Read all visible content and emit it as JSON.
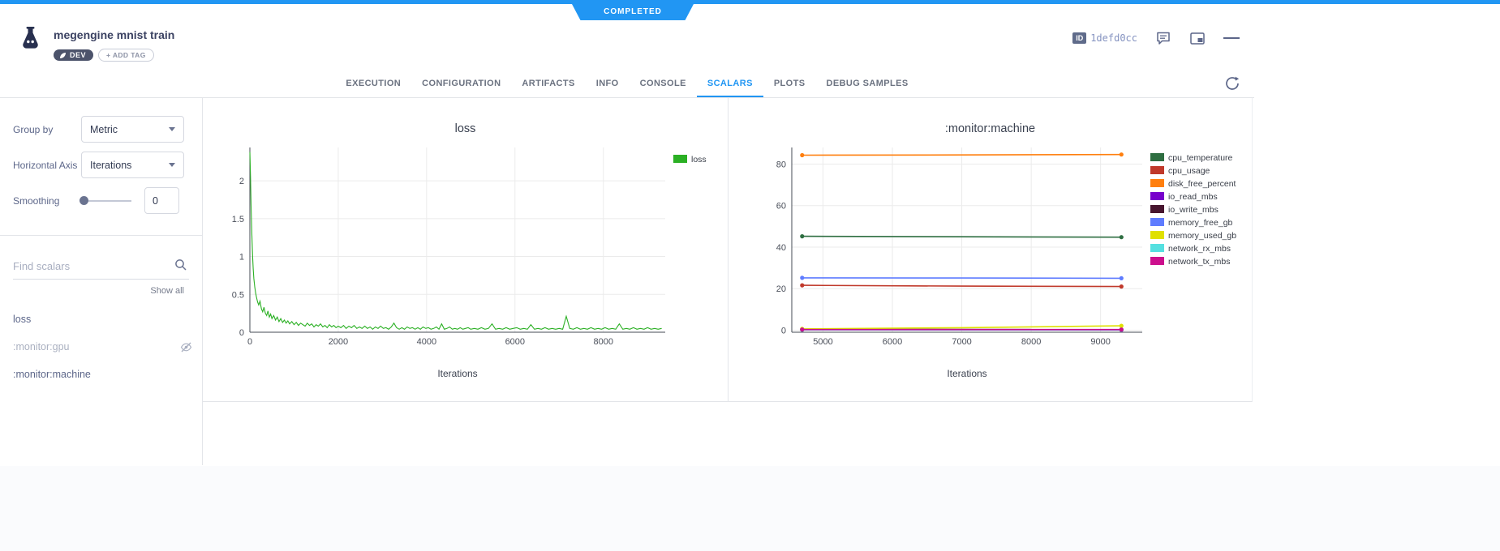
{
  "status_ribbon": {
    "label": "COMPLETED",
    "color": "#2196f3"
  },
  "header": {
    "title": "megengine mnist train",
    "tags": [
      {
        "label": "DEV"
      }
    ],
    "add_tag_label": "+ ADD TAG",
    "id_badge": {
      "label": "ID",
      "value": "1defd0cc"
    }
  },
  "tabs": {
    "items": [
      {
        "label": "EXECUTION",
        "active": false
      },
      {
        "label": "CONFIGURATION",
        "active": false
      },
      {
        "label": "ARTIFACTS",
        "active": false
      },
      {
        "label": "INFO",
        "active": false
      },
      {
        "label": "CONSOLE",
        "active": false
      },
      {
        "label": "SCALARS",
        "active": true
      },
      {
        "label": "PLOTS",
        "active": false
      },
      {
        "label": "DEBUG SAMPLES",
        "active": false
      }
    ]
  },
  "sidebar": {
    "group_by": {
      "label": "Group by",
      "value": "Metric"
    },
    "horizontal_axis": {
      "label": "Horizontal Axis",
      "value": "Iterations"
    },
    "smoothing": {
      "label": "Smoothing",
      "value": "0"
    },
    "find_scalars_placeholder": "Find scalars",
    "show_all_label": "Show all",
    "metrics": [
      {
        "label": "loss",
        "state": "visible"
      },
      {
        "label": ":monitor:gpu",
        "state": "hidden"
      },
      {
        "label": ":monitor:machine",
        "state": "visible"
      }
    ]
  },
  "chart_data": [
    {
      "type": "line",
      "title": "loss",
      "xlabel": "Iterations",
      "ylabel": "",
      "xlim": [
        0,
        9400
      ],
      "ylim": [
        0,
        2.44
      ],
      "xticks": [
        0,
        2000,
        4000,
        6000,
        8000
      ],
      "yticks": [
        0,
        0.5,
        1,
        1.5,
        2
      ],
      "grid": true,
      "legend_position": "right-top",
      "legend_y": 18,
      "markers": false,
      "line_width": 1.1,
      "series": [
        {
          "name": "loss",
          "color": "#2bb024",
          "points": [
            [
              0,
              2.38
            ],
            [
              15,
              2.05
            ],
            [
              30,
              1.62
            ],
            [
              45,
              1.28
            ],
            [
              60,
              1.02
            ],
            [
              75,
              0.84
            ],
            [
              90,
              0.71
            ],
            [
              110,
              0.6
            ],
            [
              130,
              0.52
            ],
            [
              150,
              0.46
            ],
            [
              175,
              0.4
            ],
            [
              200,
              0.36
            ],
            [
              230,
              0.41
            ],
            [
              260,
              0.31
            ],
            [
              290,
              0.27
            ],
            [
              320,
              0.33
            ],
            [
              350,
              0.25
            ],
            [
              380,
              0.22
            ],
            [
              410,
              0.28
            ],
            [
              440,
              0.2
            ],
            [
              470,
              0.24
            ],
            [
              500,
              0.18
            ],
            [
              540,
              0.22
            ],
            [
              580,
              0.16
            ],
            [
              620,
              0.2
            ],
            [
              660,
              0.14
            ],
            [
              700,
              0.18
            ],
            [
              740,
              0.13
            ],
            [
              780,
              0.16
            ],
            [
              820,
              0.12
            ],
            [
              860,
              0.15
            ],
            [
              900,
              0.11
            ],
            [
              950,
              0.14
            ],
            [
              1000,
              0.1
            ],
            [
              1050,
              0.13
            ],
            [
              1100,
              0.09
            ],
            [
              1150,
              0.12
            ],
            [
              1200,
              0.1
            ],
            [
              1250,
              0.08
            ],
            [
              1300,
              0.12
            ],
            [
              1350,
              0.09
            ],
            [
              1400,
              0.11
            ],
            [
              1450,
              0.07
            ],
            [
              1500,
              0.1
            ],
            [
              1550,
              0.08
            ],
            [
              1600,
              0.11
            ],
            [
              1650,
              0.07
            ],
            [
              1700,
              0.09
            ],
            [
              1750,
              0.06
            ],
            [
              1800,
              0.1
            ],
            [
              1850,
              0.07
            ],
            [
              1900,
              0.09
            ],
            [
              1950,
              0.06
            ],
            [
              2000,
              0.08
            ],
            [
              2060,
              0.06
            ],
            [
              2120,
              0.09
            ],
            [
              2180,
              0.05
            ],
            [
              2240,
              0.08
            ],
            [
              2300,
              0.06
            ],
            [
              2360,
              0.09
            ],
            [
              2420,
              0.05
            ],
            [
              2480,
              0.07
            ],
            [
              2540,
              0.05
            ],
            [
              2600,
              0.08
            ],
            [
              2660,
              0.05
            ],
            [
              2720,
              0.07
            ],
            [
              2780,
              0.04
            ],
            [
              2840,
              0.07
            ],
            [
              2900,
              0.05
            ],
            [
              2960,
              0.08
            ],
            [
              3020,
              0.05
            ],
            [
              3080,
              0.06
            ],
            [
              3140,
              0.04
            ],
            [
              3200,
              0.07
            ],
            [
              3260,
              0.12
            ],
            [
              3320,
              0.06
            ],
            [
              3380,
              0.04
            ],
            [
              3440,
              0.06
            ],
            [
              3500,
              0.04
            ],
            [
              3560,
              0.07
            ],
            [
              3620,
              0.05
            ],
            [
              3680,
              0.06
            ],
            [
              3740,
              0.04
            ],
            [
              3800,
              0.06
            ],
            [
              3860,
              0.04
            ],
            [
              3920,
              0.07
            ],
            [
              3980,
              0.05
            ],
            [
              4040,
              0.06
            ],
            [
              4100,
              0.04
            ],
            [
              4160,
              0.05
            ],
            [
              4220,
              0.07
            ],
            [
              4280,
              0.04
            ],
            [
              4340,
              0.11
            ],
            [
              4400,
              0.04
            ],
            [
              4460,
              0.05
            ],
            [
              4520,
              0.07
            ],
            [
              4580,
              0.04
            ],
            [
              4640,
              0.05
            ],
            [
              4700,
              0.04
            ],
            [
              4760,
              0.06
            ],
            [
              4820,
              0.04
            ],
            [
              4880,
              0.05
            ],
            [
              4940,
              0.06
            ],
            [
              5000,
              0.04
            ],
            [
              5080,
              0.05
            ],
            [
              5160,
              0.04
            ],
            [
              5240,
              0.06
            ],
            [
              5320,
              0.04
            ],
            [
              5400,
              0.05
            ],
            [
              5480,
              0.11
            ],
            [
              5560,
              0.04
            ],
            [
              5640,
              0.05
            ],
            [
              5720,
              0.04
            ],
            [
              5800,
              0.06
            ],
            [
              5880,
              0.04
            ],
            [
              5960,
              0.05
            ],
            [
              6040,
              0.06
            ],
            [
              6120,
              0.04
            ],
            [
              6200,
              0.05
            ],
            [
              6280,
              0.04
            ],
            [
              6360,
              0.1
            ],
            [
              6440,
              0.04
            ],
            [
              6520,
              0.05
            ],
            [
              6600,
              0.04
            ],
            [
              6680,
              0.06
            ],
            [
              6760,
              0.04
            ],
            [
              6840,
              0.05
            ],
            [
              6920,
              0.04
            ],
            [
              7000,
              0.05
            ],
            [
              7080,
              0.04
            ],
            [
              7160,
              0.21
            ],
            [
              7240,
              0.05
            ],
            [
              7320,
              0.04
            ],
            [
              7400,
              0.06
            ],
            [
              7480,
              0.04
            ],
            [
              7560,
              0.05
            ],
            [
              7640,
              0.04
            ],
            [
              7720,
              0.06
            ],
            [
              7800,
              0.04
            ],
            [
              7880,
              0.05
            ],
            [
              7960,
              0.04
            ],
            [
              8040,
              0.06
            ],
            [
              8120,
              0.04
            ],
            [
              8200,
              0.05
            ],
            [
              8280,
              0.04
            ],
            [
              8360,
              0.11
            ],
            [
              8440,
              0.04
            ],
            [
              8520,
              0.05
            ],
            [
              8600,
              0.04
            ],
            [
              8680,
              0.06
            ],
            [
              8760,
              0.04
            ],
            [
              8840,
              0.05
            ],
            [
              8920,
              0.04
            ],
            [
              9000,
              0.06
            ],
            [
              9080,
              0.04
            ],
            [
              9160,
              0.05
            ],
            [
              9240,
              0.04
            ],
            [
              9320,
              0.05
            ]
          ]
        }
      ]
    },
    {
      "type": "line",
      "title": ":monitor:machine",
      "xlabel": "Iterations",
      "ylabel": "",
      "xlim": [
        4550,
        9600
      ],
      "ylim": [
        -1,
        88
      ],
      "xticks": [
        5000,
        6000,
        7000,
        8000,
        9000
      ],
      "yticks": [
        0,
        20,
        40,
        60,
        80
      ],
      "grid": true,
      "legend_position": "right-top",
      "legend_y": 16,
      "markers": true,
      "line_width": 1.6,
      "series": [
        {
          "name": "cpu_temperature",
          "color": "#2e6e41",
          "points": [
            [
              4700,
              45.2
            ],
            [
              7000,
              45.0
            ],
            [
              9300,
              44.8
            ]
          ]
        },
        {
          "name": "cpu_usage",
          "color": "#c0392b",
          "points": [
            [
              4700,
              21.6
            ],
            [
              7000,
              21.2
            ],
            [
              9300,
              21.0
            ]
          ]
        },
        {
          "name": "disk_free_percent",
          "color": "#ff7f0e",
          "points": [
            [
              4700,
              84.3
            ],
            [
              7000,
              84.4
            ],
            [
              9300,
              84.6
            ]
          ]
        },
        {
          "name": "io_read_mbs",
          "color": "#7700cc",
          "points": [
            [
              4700,
              0.2
            ],
            [
              9300,
              0.1
            ]
          ]
        },
        {
          "name": "io_write_mbs",
          "color": "#47152f",
          "points": [
            [
              4700,
              0.4
            ],
            [
              9300,
              0.3
            ]
          ]
        },
        {
          "name": "memory_free_gb",
          "color": "#5f7cff",
          "points": [
            [
              4700,
              25.2
            ],
            [
              7000,
              25.1
            ],
            [
              9300,
              25.0
            ]
          ]
        },
        {
          "name": "memory_used_gb",
          "color": "#e0e000",
          "points": [
            [
              4700,
              0.6
            ],
            [
              7000,
              1.2
            ],
            [
              9300,
              2.1
            ]
          ]
        },
        {
          "name": "network_rx_mbs",
          "color": "#55e0e0",
          "points": [
            [
              4700,
              0.2
            ],
            [
              9300,
              0.2
            ]
          ]
        },
        {
          "name": "network_tx_mbs",
          "color": "#cc0f8d",
          "points": [
            [
              4700,
              0.3
            ],
            [
              9300,
              0.3
            ]
          ]
        }
      ]
    }
  ]
}
